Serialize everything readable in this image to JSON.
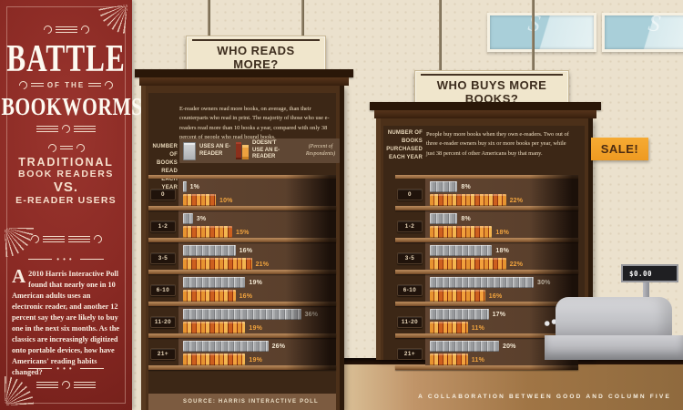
{
  "poster": {
    "title_line1": "BATTLE",
    "title_connector": "OF THE",
    "title_line2": "BOOKWORMS",
    "subtitle_line1": "TRADITIONAL",
    "subtitle_line2": "BOOK READERS",
    "subtitle_vs": "VS.",
    "subtitle_line3": "E-READER USERS",
    "intro_dropcap": "A",
    "intro_text": "2010 Harris Interactive Poll found that nearly one in 10 American adults uses an electronic reader, and another 12 percent say they are likely to buy one in the next six months. As the classics are increasingly digitized onto portable devices, how have Americans' reading habits changed?"
  },
  "signs": {
    "reads": "WHO READS MORE?",
    "buys": "WHO BUYS MORE BOOKS?"
  },
  "legend": {
    "uses": "USES AN E-READER",
    "doesnt": "DOESN'T USE AN E-READER",
    "unit_note": "(Percent of Respondents)"
  },
  "sale_tag": "SALE!",
  "register_display": "$0.00",
  "footer": {
    "source": "SOURCE: HARRIS INTERACTIVE POLL",
    "collaboration": "A COLLABORATION BETWEEN GOOD AND COLUMN FIVE"
  },
  "colors": {
    "poster_red": "#8a2a24",
    "wood_dark": "#3c2716",
    "shelf_board": "#a8784c",
    "books_orange": "#e79430",
    "ereader_gray": "#a9abad",
    "sale_orange": "#f2a32c",
    "wall_beige": "#ebe1cd"
  },
  "chart_data": [
    {
      "type": "bar",
      "title": "WHO READS MORE?",
      "intro": "E-reader owners read more books, on average, than their counterparts who read in print. The majority of those who use e-readers read more than 10 books a year, compared with only 38 percent of people who read bound books.",
      "axis_label": "NUMBER OF BOOKS READ EACH YEAR",
      "unit": "Percent of Respondents",
      "categories": [
        "0",
        "1-2",
        "3-5",
        "6-10",
        "11-20",
        "21+"
      ],
      "series": [
        {
          "name": "USES AN E-READER",
          "values": [
            1,
            3,
            16,
            19,
            36,
            26
          ]
        },
        {
          "name": "DOESN'T USE AN E-READER",
          "values": [
            10,
            15,
            21,
            16,
            19,
            19
          ]
        }
      ],
      "xlim": [
        0,
        40
      ],
      "legend_position": "top"
    },
    {
      "type": "bar",
      "title": "WHO BUYS MORE BOOKS?",
      "intro": "People buy more books when they own e-readers. Two out of three e-reader owners buy six or more books per year, while just 38 percent of other Americans buy that many.",
      "axis_label": "NUMBER OF BOOKS PURCHASED EACH YEAR",
      "unit": "Percent of Respondents",
      "categories": [
        "0",
        "1-2",
        "3-5",
        "6-10",
        "11-20",
        "21+"
      ],
      "series": [
        {
          "name": "USES AN E-READER",
          "values": [
            8,
            8,
            18,
            30,
            17,
            20
          ]
        },
        {
          "name": "DOESN'T USE AN E-READER",
          "values": [
            22,
            18,
            22,
            16,
            11,
            11
          ]
        }
      ],
      "xlim": [
        0,
        40
      ],
      "legend_position": "none"
    }
  ]
}
